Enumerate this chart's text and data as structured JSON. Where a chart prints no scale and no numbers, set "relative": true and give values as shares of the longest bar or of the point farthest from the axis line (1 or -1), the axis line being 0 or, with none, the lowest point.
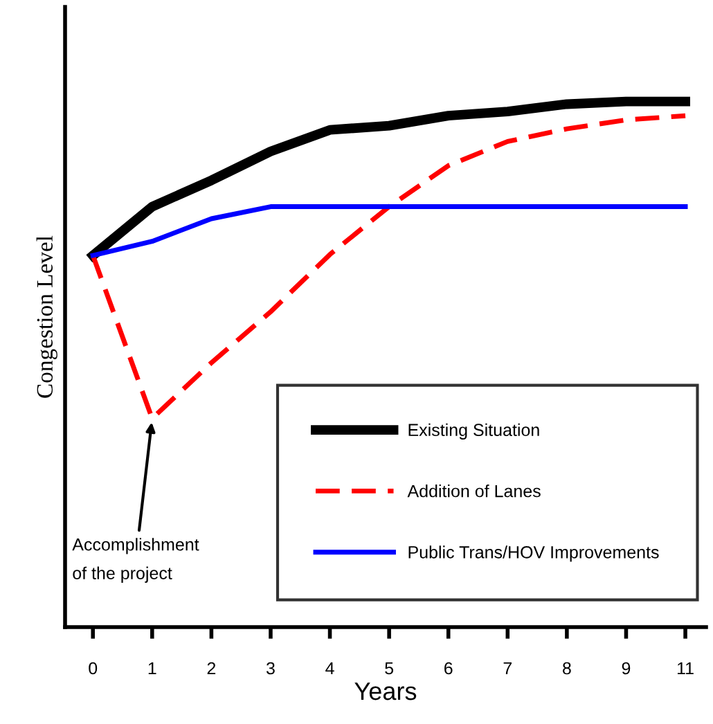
{
  "chart_data": {
    "type": "line",
    "xlabel": "Years",
    "ylabel": "Congestion Level",
    "relative": true,
    "categories": [
      "0",
      "1",
      "2",
      "3",
      "4",
      "5",
      "6",
      "7",
      "8",
      "9",
      "11"
    ],
    "series": [
      {
        "name": "Existing Situation",
        "color": "#000000",
        "line_style": "solid",
        "values": [
          0.707,
          0.8,
          0.85,
          0.905,
          0.946,
          0.954,
          0.973,
          0.981,
          0.995,
          1.0,
          1.0
        ]
      },
      {
        "name": "Addition of Lanes",
        "color": "#ff0000",
        "line_style": "dashed",
        "values": [
          0.707,
          0.397,
          0.503,
          0.6,
          0.709,
          0.8,
          0.878,
          0.924,
          0.948,
          0.965,
          0.973
        ]
      },
      {
        "name": "Public Trans/HOV Improvements",
        "color": "#0000ff",
        "line_style": "solid",
        "values": [
          0.707,
          0.734,
          0.777,
          0.8,
          0.8,
          0.8,
          0.8,
          0.8,
          0.8,
          0.8,
          0.8
        ]
      }
    ],
    "annotations": [
      {
        "text": "Accomplishment\nof the project",
        "x": "1",
        "y": 0.397
      }
    ],
    "legend": "bottom right",
    "grid": false,
    "marker": "none"
  }
}
